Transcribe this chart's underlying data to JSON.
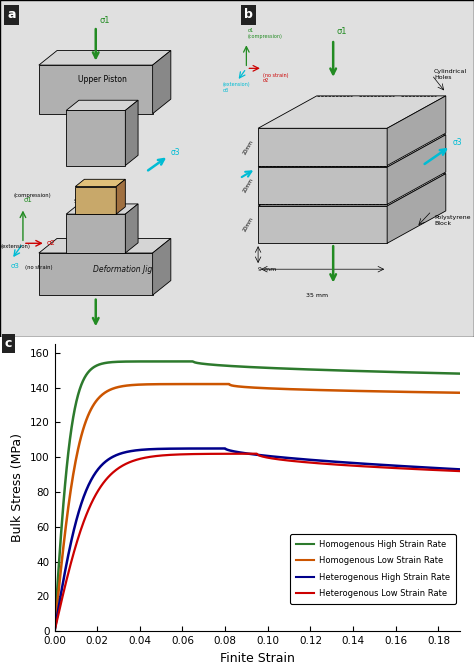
{
  "xlabel": "Finite Strain",
  "ylabel": "Bulk Stress (MPa)",
  "xlim": [
    0,
    0.19
  ],
  "ylim": [
    0,
    165
  ],
  "xticks": [
    0,
    0.02,
    0.04,
    0.06,
    0.08,
    0.1,
    0.12,
    0.14,
    0.16,
    0.18
  ],
  "yticks": [
    0,
    20,
    40,
    60,
    80,
    100,
    120,
    140,
    160
  ],
  "curves": {
    "homogenous_high": {
      "color": "#2d7a2d",
      "label": "Homogenous High Strain Rate",
      "lw": 1.8
    },
    "homogenous_low": {
      "color": "#cc5500",
      "label": "Homogenous Low Strain Rate",
      "lw": 1.8
    },
    "heterogenous_high": {
      "color": "#00008b",
      "label": "Heterogenous High Strain Rate",
      "lw": 1.8
    },
    "heterogenous_low": {
      "color": "#cc0000",
      "label": "Heterogenous Low Strain Rate",
      "lw": 1.6
    }
  }
}
